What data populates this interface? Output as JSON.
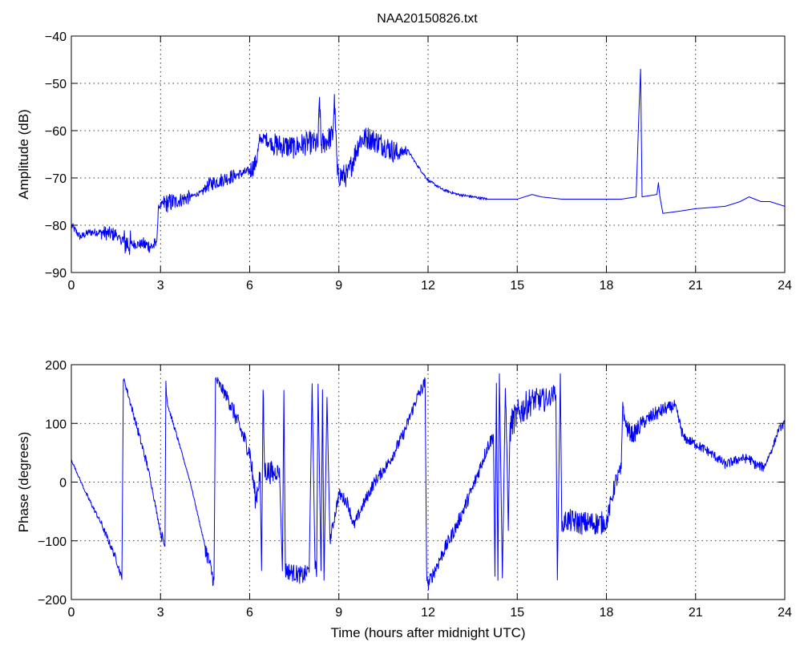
{
  "figure": {
    "title": "NAA20150826.txt"
  },
  "colors": {
    "series": "#0000ff",
    "axes": "#000000",
    "background": "#ffffff"
  },
  "chart_data": [
    {
      "type": "line",
      "title": "NAA20150826.txt",
      "xlabel": "",
      "ylabel": "Amplitude (dB)",
      "xlim": [
        0,
        24
      ],
      "ylim": [
        -90,
        -40
      ],
      "xticks": [
        0,
        3,
        6,
        9,
        12,
        15,
        18,
        21,
        24
      ],
      "yticks": [
        -90,
        -80,
        -70,
        -60,
        -50,
        -40
      ],
      "grid": true,
      "noise": [
        0.8,
        0.8,
        0.8,
        1.5,
        0.8,
        3,
        1,
        1.5,
        1.5,
        1.5,
        0.8,
        2,
        1.5,
        0.5,
        1,
        1.5,
        1.5,
        1,
        2,
        2,
        1,
        1.5,
        2.5,
        2.5,
        2.5,
        2.5,
        2.5,
        2.5,
        1.2,
        2,
        2.5,
        2.5,
        2.5,
        2.5,
        2.5,
        2.5,
        1.2,
        0.3,
        0.3,
        0.3,
        0.3,
        0.3
      ],
      "series": [
        {
          "x": [
            0,
            0.3,
            0.6,
            1.0,
            1.5,
            1.7,
            2.0,
            2.4,
            2.7,
            2.85,
            2.95,
            3.1,
            3.5,
            4.0,
            4.4,
            4.6,
            5.0,
            5.5,
            6.0,
            6.2,
            6.35,
            6.5,
            6.8,
            7.5,
            8.0,
            8.3,
            8.35,
            8.4,
            8.8,
            8.85,
            8.9,
            8.95,
            9.3,
            9.7,
            10.0,
            10.5,
            11.0,
            11.3,
            11.6,
            12.0,
            12.5,
            13.0,
            14.0,
            15.0,
            15.5,
            15.8,
            16.5,
            17.5,
            18.0,
            18.5,
            19.0,
            19.1,
            19.15,
            19.2,
            19.7,
            19.75,
            19.8,
            19.9,
            20.5,
            21.0,
            22.0,
            22.5,
            22.8,
            23.2,
            23.5,
            24.0
          ],
          "y": [
            -80,
            -82.5,
            -81.5,
            -81.5,
            -82,
            -83.5,
            -84,
            -84,
            -84.5,
            -84,
            -76,
            -75.5,
            -75,
            -74,
            -73,
            -71.5,
            -70.5,
            -69.5,
            -68.5,
            -67,
            -62,
            -61.5,
            -63,
            -63.5,
            -62.5,
            -63,
            -53,
            -63,
            -61,
            -53,
            -61,
            -69.5,
            -69.5,
            -62,
            -61.5,
            -63,
            -65,
            -64,
            -67,
            -70.5,
            -72.5,
            -73.5,
            -74.5,
            -74.5,
            -73.5,
            -74,
            -74.5,
            -74.5,
            -74.5,
            -74.5,
            -74,
            -55,
            -47,
            -74,
            -73.5,
            -71,
            -74,
            -77.5,
            -77,
            -76.5,
            -76,
            -75,
            -74,
            -75,
            -75,
            -76
          ]
        }
      ]
    },
    {
      "type": "line",
      "title": "",
      "xlabel": "Time (hours after midnight UTC)",
      "ylabel": "Phase (degrees)",
      "xlim": [
        0,
        24
      ],
      "ylim": [
        -200,
        200
      ],
      "xticks": [
        0,
        3,
        6,
        9,
        12,
        15,
        18,
        21,
        24
      ],
      "yticks": [
        -200,
        -100,
        0,
        100,
        200
      ],
      "grid": true,
      "noise": [
        2,
        4,
        6,
        6,
        2,
        4,
        6,
        8,
        4,
        10,
        10,
        6,
        6,
        4,
        2,
        2,
        15,
        15,
        10,
        10,
        15,
        20,
        20,
        15,
        20,
        20,
        20,
        15,
        10,
        10,
        10,
        15,
        15,
        10,
        10,
        20,
        20,
        20,
        15,
        15,
        15,
        10,
        10,
        10,
        10,
        10,
        10,
        10,
        10,
        10,
        12,
        12,
        12,
        12,
        12,
        12,
        12,
        12,
        12,
        12,
        12,
        10,
        20,
        20,
        20,
        20,
        20,
        25,
        25,
        25,
        20,
        15,
        15,
        15,
        20,
        20,
        20,
        20,
        20,
        20,
        15,
        15,
        15,
        15,
        15,
        12,
        12,
        15,
        15,
        12,
        12,
        10,
        10,
        8,
        8,
        8,
        8,
        8,
        8,
        8,
        6,
        6,
        6,
        6,
        6
      ],
      "series": [
        {
          "x": [
            0,
            0.5,
            1.0,
            1.5,
            1.7,
            1.75,
            1.8,
            2.2,
            2.6,
            3.0,
            3.15,
            3.18,
            3.2,
            3.25,
            3.6,
            4.0,
            4.5,
            4.8,
            4.85,
            4.9,
            5.3,
            6.0,
            6.2,
            6.35,
            6.4,
            6.45,
            6.5,
            6.8,
            7.0,
            7.1,
            7.15,
            7.2,
            7.8,
            8.0,
            8.1,
            8.2,
            8.25,
            8.3,
            8.4,
            8.45,
            8.5,
            8.6,
            8.7,
            9.0,
            9.3,
            9.5,
            9.8,
            10.2,
            10.7,
            11.2,
            11.6,
            11.9,
            11.95,
            12.0,
            12.5,
            13.0,
            13.5,
            14.0,
            14.2,
            14.25,
            14.3,
            14.35,
            14.4,
            14.5,
            14.6,
            14.65,
            14.7,
            14.75,
            14.8,
            15.0,
            15.5,
            16.0,
            16.3,
            16.35,
            16.45,
            16.5,
            16.6,
            16.65,
            17.2,
            17.6,
            17.9,
            18.0,
            18.3,
            18.5,
            18.55,
            18.6,
            18.65,
            18.7,
            18.9,
            19.2,
            19.6,
            20.0,
            20.3,
            20.6,
            21.0,
            21.5,
            22.0,
            22.5,
            22.8,
            23.0,
            23.3,
            23.6,
            23.8,
            24.0
          ],
          "y": [
            38,
            -20,
            -70,
            -130,
            -165,
            175,
            170,
            95,
            20,
            -85,
            -110,
            175,
            150,
            130,
            70,
            0,
            -110,
            -170,
            175,
            172,
            140,
            50,
            -30,
            15,
            -160,
            160,
            20,
            15,
            20,
            -150,
            160,
            -150,
            -160,
            -150,
            170,
            -140,
            -170,
            170,
            -150,
            160,
            -160,
            140,
            -100,
            -20,
            -35,
            -75,
            -40,
            0,
            35,
            85,
            140,
            170,
            -150,
            -175,
            -120,
            -70,
            -10,
            60,
            80,
            -160,
            170,
            -170,
            175,
            -170,
            160,
            70,
            -90,
            80,
            100,
            115,
            140,
            140,
            155,
            -170,
            175,
            -75,
            -70,
            -65,
            -70,
            -70,
            -70,
            -70,
            0,
            20,
            140,
            110,
            100,
            90,
            80,
            100,
            115,
            125,
            130,
            75,
            65,
            50,
            30,
            40,
            40,
            30,
            25,
            60,
            90,
            100
          ]
        }
      ]
    }
  ]
}
